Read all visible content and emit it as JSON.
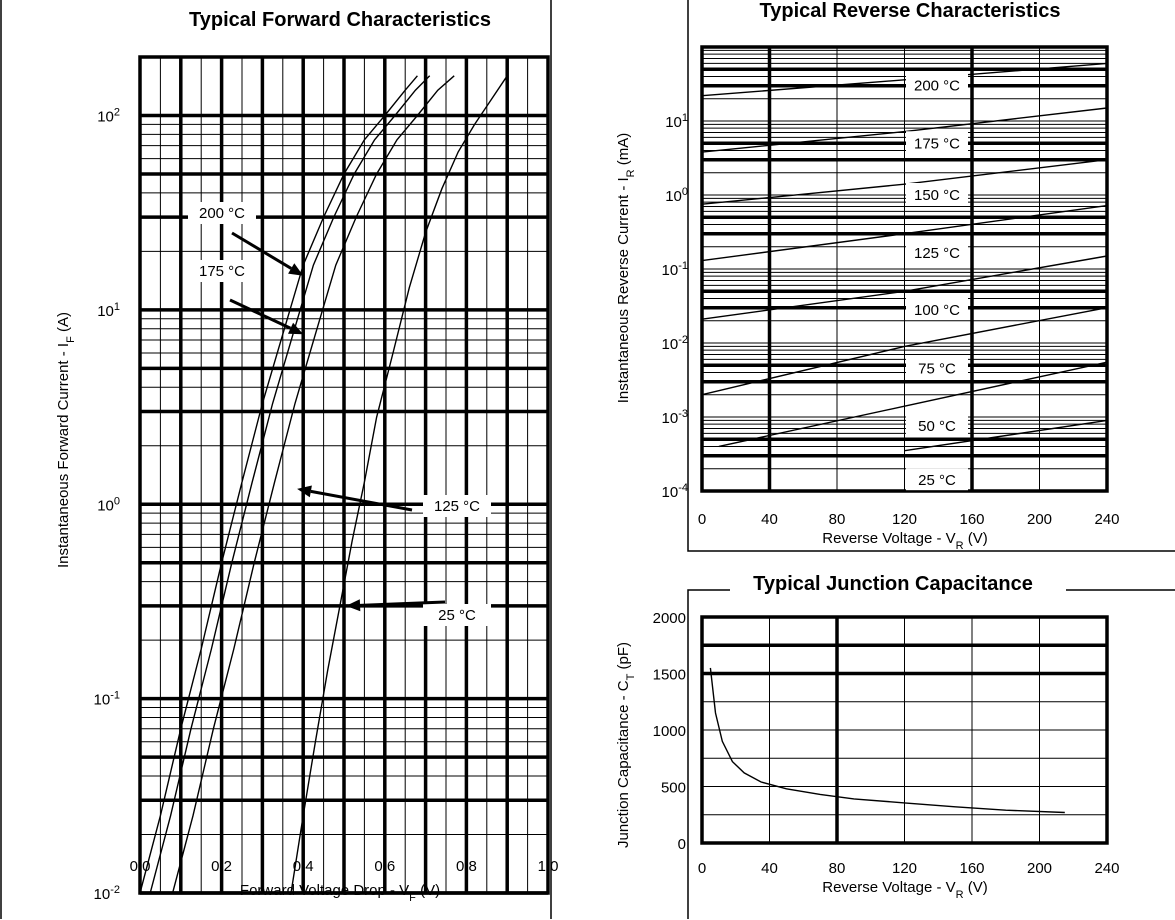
{
  "chart_data": [
    {
      "id": "forward",
      "type": "line",
      "title": "Typical Forward Characteristics",
      "xlabel": "Forward Voltage Drop - V",
      "xlabel_sub": "F",
      "xlabel_unit": " (V)",
      "ylabel": "Instantaneous Forward Current - I",
      "ylabel_sub": "F",
      "ylabel_unit": " (A)",
      "x_scale": "linear",
      "y_scale": "log",
      "xlim": [
        0.0,
        1.0
      ],
      "ylim": [
        0.01,
        200
      ],
      "x_ticks": [
        "0.0",
        "0.2",
        "0.4",
        "0.6",
        "0.8",
        "1.0"
      ],
      "y_ticks": [
        {
          "base": "10",
          "exp": "2",
          "value": 100
        },
        {
          "base": "10",
          "exp": "1",
          "value": 10
        },
        {
          "base": "10",
          "exp": "0",
          "value": 1
        },
        {
          "base": "10",
          "exp": "-1",
          "value": 0.1
        },
        {
          "base": "10",
          "exp": "-2",
          "value": 0.01
        }
      ],
      "grid": true,
      "series": [
        {
          "name": "200 °C",
          "x": [
            0.0,
            0.05,
            0.1,
            0.15,
            0.2,
            0.25,
            0.3,
            0.35,
            0.4,
            0.45,
            0.5,
            0.55,
            0.6,
            0.65,
            0.68
          ],
          "y": [
            0.01,
            0.025,
            0.07,
            0.18,
            0.5,
            1.3,
            3.3,
            7.5,
            17,
            30,
            50,
            75,
            100,
            135,
            160
          ]
        },
        {
          "name": "175 °C",
          "x": [
            0.025,
            0.075,
            0.125,
            0.175,
            0.225,
            0.275,
            0.325,
            0.375,
            0.425,
            0.475,
            0.525,
            0.575,
            0.625,
            0.675,
            0.71
          ],
          "y": [
            0.01,
            0.025,
            0.07,
            0.18,
            0.5,
            1.3,
            3.3,
            7.5,
            17,
            30,
            50,
            75,
            100,
            135,
            160
          ]
        },
        {
          "name": "125 °C",
          "x": [
            0.08,
            0.13,
            0.18,
            0.23,
            0.28,
            0.33,
            0.38,
            0.43,
            0.48,
            0.53,
            0.58,
            0.63,
            0.68,
            0.73,
            0.77
          ],
          "y": [
            0.01,
            0.025,
            0.07,
            0.18,
            0.5,
            1.3,
            3.3,
            7.5,
            17,
            30,
            50,
            75,
            100,
            135,
            160
          ]
        },
        {
          "name": "25 °C",
          "x": [
            0.37,
            0.4,
            0.43,
            0.46,
            0.49,
            0.52,
            0.55,
            0.58,
            0.62,
            0.66,
            0.7,
            0.74,
            0.78,
            0.82,
            0.86,
            0.9
          ],
          "y": [
            0.01,
            0.025,
            0.06,
            0.14,
            0.3,
            0.65,
            1.3,
            2.8,
            6,
            13,
            25,
            42,
            65,
            90,
            120,
            160
          ]
        }
      ],
      "annotations": [
        {
          "text": "200 °C",
          "x": 0.4,
          "y": 15
        },
        {
          "text": "175 °C",
          "x": 0.4,
          "y": 7.5
        },
        {
          "text": "125 °C",
          "x": 0.385,
          "y": 1.2
        },
        {
          "text": "25 °C",
          "x": 0.505,
          "y": 0.3
        }
      ]
    },
    {
      "id": "reverse",
      "type": "line",
      "title": "Typical Reverse Characteristics",
      "xlabel": "Reverse Voltage - V",
      "xlabel_sub": "R",
      "xlabel_unit": " (V)",
      "ylabel": "Instantaneous Reverse Current - I",
      "ylabel_sub": "R",
      "ylabel_unit": " (mA)",
      "x_scale": "linear",
      "y_scale": "log",
      "xlim": [
        0,
        240
      ],
      "ylim": [
        0.0001,
        100
      ],
      "x_ticks": [
        "0",
        "40",
        "80",
        "120",
        "160",
        "200",
        "240"
      ],
      "y_ticks": [
        {
          "base": "10",
          "exp": "1",
          "value": 10
        },
        {
          "base": "10",
          "exp": "0",
          "value": 1
        },
        {
          "base": "10",
          "exp": "-1",
          "value": 0.1
        },
        {
          "base": "10",
          "exp": "-2",
          "value": 0.01
        },
        {
          "base": "10",
          "exp": "-3",
          "value": 0.001
        },
        {
          "base": "10",
          "exp": "-4",
          "value": 0.0001
        }
      ],
      "grid": true,
      "series": [
        {
          "name": "200 °C",
          "x": [
            0,
            120,
            240
          ],
          "y": [
            22,
            36,
            60
          ]
        },
        {
          "name": "175 °C",
          "x": [
            0,
            120,
            240
          ],
          "y": [
            3.8,
            7.2,
            15
          ]
        },
        {
          "name": "150 °C",
          "x": [
            0,
            120,
            240
          ],
          "y": [
            0.75,
            1.4,
            3.0
          ]
        },
        {
          "name": "125 °C",
          "x": [
            0,
            120,
            240
          ],
          "y": [
            0.13,
            0.3,
            0.72
          ]
        },
        {
          "name": "100 °C",
          "x": [
            0,
            120,
            240
          ],
          "y": [
            0.021,
            0.05,
            0.15
          ]
        },
        {
          "name": "75 °C",
          "x": [
            0,
            120,
            240
          ],
          "y": [
            0.002,
            0.009,
            0.03
          ]
        },
        {
          "name": "50 °C",
          "x": [
            10,
            120,
            240
          ],
          "y": [
            0.0004,
            0.0014,
            0.0055
          ]
        },
        {
          "name": "25 °C",
          "x": [
            120,
            240
          ],
          "y": [
            0.00035,
            0.0009
          ]
        }
      ],
      "curve_labels": [
        {
          "text": "200 °C",
          "y": 30
        },
        {
          "text": "175 °C",
          "y": 5
        },
        {
          "text": "150 °C",
          "y": 1
        },
        {
          "text": "125 °C",
          "y": 0.165
        },
        {
          "text": "100 °C",
          "y": 0.028
        },
        {
          "text": "75 °C",
          "y": 0.0045
        },
        {
          "text": "50 °C",
          "y": 0.00075
        },
        {
          "text": "25 °C",
          "y": 0.00014
        }
      ]
    },
    {
      "id": "capacitance",
      "type": "line",
      "title": "Typical Junction Capacitance",
      "xlabel": "Reverse Voltage - V",
      "xlabel_sub": "R",
      "xlabel_unit": " (V)",
      "ylabel": "Junction Capacitance - C",
      "ylabel_sub": "T",
      "ylabel_unit": " (pF)",
      "x_scale": "linear",
      "y_scale": "linear",
      "xlim": [
        0,
        240
      ],
      "ylim": [
        0,
        2000
      ],
      "x_ticks": [
        "0",
        "40",
        "80",
        "120",
        "160",
        "200",
        "240"
      ],
      "y_ticks": [
        "0",
        "500",
        "1000",
        "1500",
        "2000"
      ],
      "grid": true,
      "series": [
        {
          "name": "",
          "x": [
            5,
            8,
            12,
            18,
            25,
            35,
            50,
            70,
            90,
            120,
            150,
            180,
            215
          ],
          "y": [
            1550,
            1150,
            900,
            720,
            620,
            540,
            480,
            430,
            390,
            355,
            320,
            290,
            270
          ]
        }
      ]
    }
  ]
}
